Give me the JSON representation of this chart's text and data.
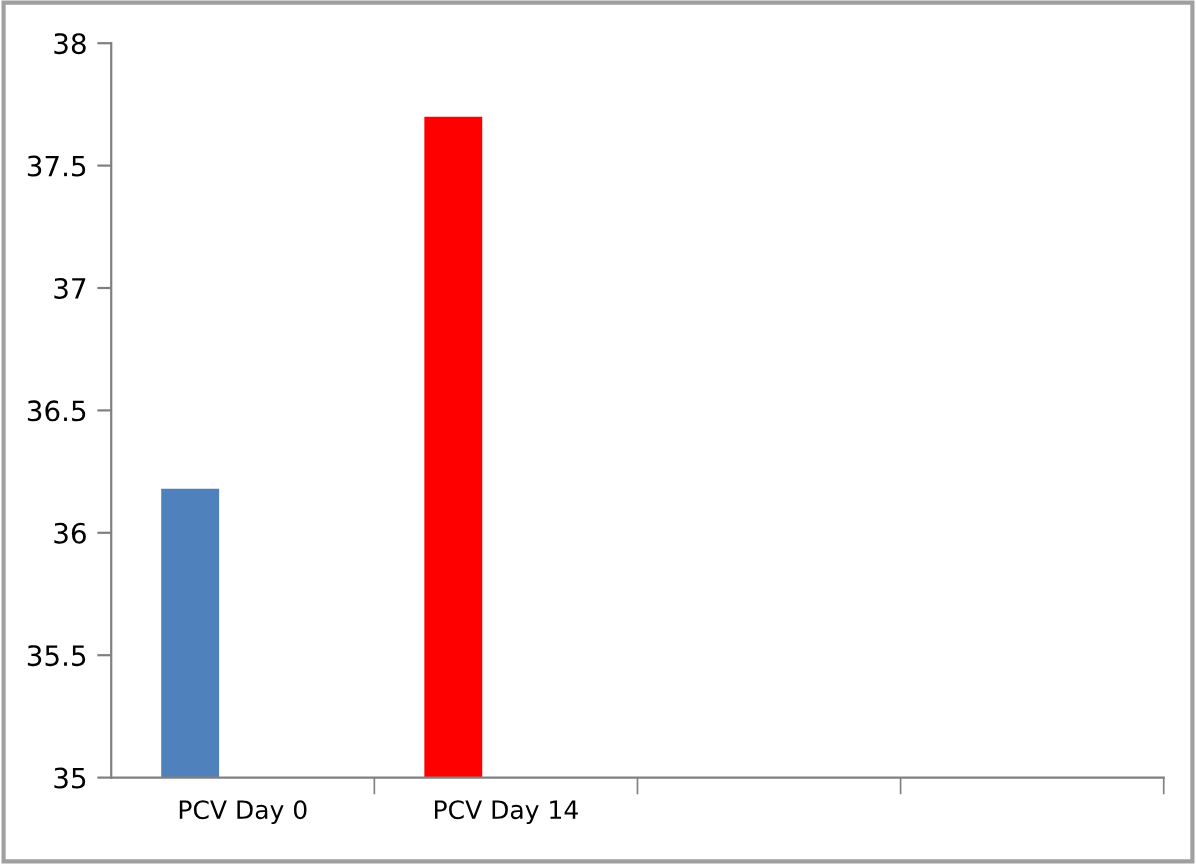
{
  "chart_data": {
    "type": "bar",
    "categories": [
      "PCV Day 0",
      "PCV Day 14",
      null,
      null
    ],
    "values": [
      36.18,
      37.7,
      null,
      null
    ],
    "colors": [
      "#4f81bd",
      "#ff0000",
      null,
      null
    ],
    "ylim": [
      35,
      38
    ],
    "yticks": [
      35,
      35.5,
      36,
      36.5,
      37,
      37.5,
      38
    ],
    "grid": false,
    "legend": false
  }
}
